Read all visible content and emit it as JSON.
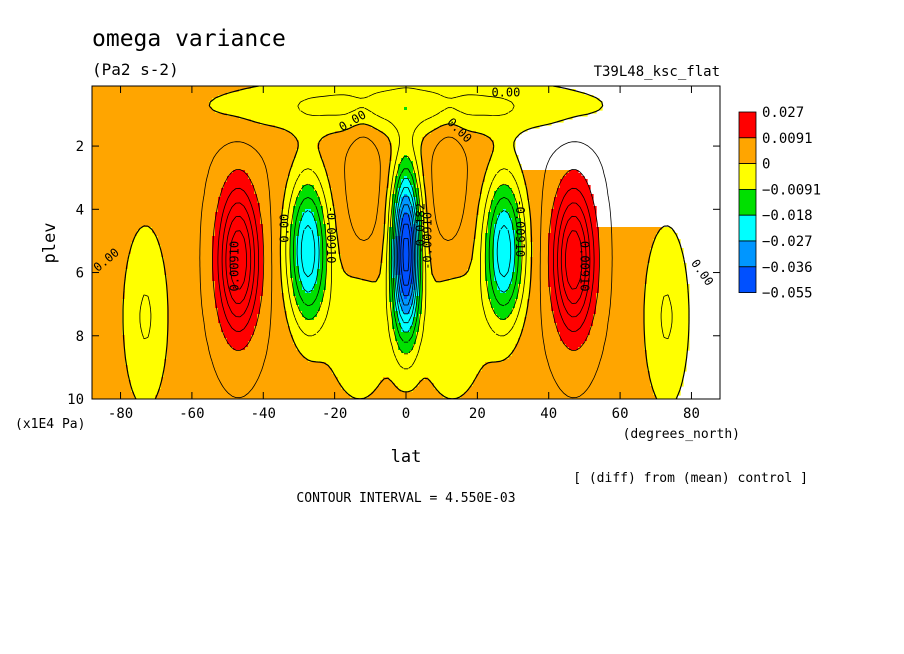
{
  "chart_data": {
    "type": "heatmap",
    "title": "omega variance",
    "units": "(Pa2 s-2)",
    "run_label": "T39L48_ksc_flat",
    "xlabel": "lat",
    "x_units": "(degrees_north)",
    "ylabel": "plev",
    "y_units": "(x1E4 Pa)",
    "x_ticks": [
      -80,
      -60,
      -40,
      -20,
      0,
      20,
      40,
      60,
      80
    ],
    "y_ticks": [
      2,
      4,
      6,
      8,
      10
    ],
    "xlim": [
      -88,
      88
    ],
    "ylim": [
      10,
      0.1
    ],
    "contour_interval_text": "CONTOUR INTERVAL = 4.550E-03",
    "diff_note": "[ (diff) from (mean) control ]",
    "legend": {
      "levels": [
        "0.027",
        "0.0091",
        "0",
        "−0.0091",
        "−0.018",
        "−0.027",
        "−0.036",
        "−0.055"
      ],
      "colors": [
        "#ff0000",
        "#ffa500",
        "#ffff00",
        "#00e000",
        "#00ffff",
        "#0096ff",
        "#0050ff"
      ]
    },
    "contour_labels": [
      {
        "text": "0.00",
        "lat": 28,
        "p": 0.3,
        "rot": 0
      },
      {
        "text": "0.00",
        "lat": -15,
        "p": 1.2,
        "rot": -30
      },
      {
        "text": "0.00",
        "lat": 15,
        "p": 1.5,
        "rot": 45
      },
      {
        "text": "0.00",
        "lat": -84,
        "p": 5.6,
        "rot": -40
      },
      {
        "text": "0.00",
        "lat": 83,
        "p": 6.0,
        "rot": 55
      },
      {
        "text": "0.00",
        "lat": -34,
        "p": 4.6,
        "rot": -90
      },
      {
        "text": "0.00910",
        "lat": -48,
        "p": 5.8,
        "rot": -90
      },
      {
        "text": "0.00910",
        "lat": 50,
        "p": 5.8,
        "rot": 90
      },
      {
        "text": "-0.00910",
        "lat": -21,
        "p": 4.8,
        "rot": 90
      },
      {
        "text": "-0.00910",
        "lat": 32,
        "p": 4.6,
        "rot": 90
      },
      {
        "text": "-0.00910",
        "lat": 6,
        "p": 5.0,
        "rot": -90
      },
      {
        "text": "-0.0182",
        "lat": 4,
        "p": 4.6,
        "rot": -90
      }
    ]
  }
}
